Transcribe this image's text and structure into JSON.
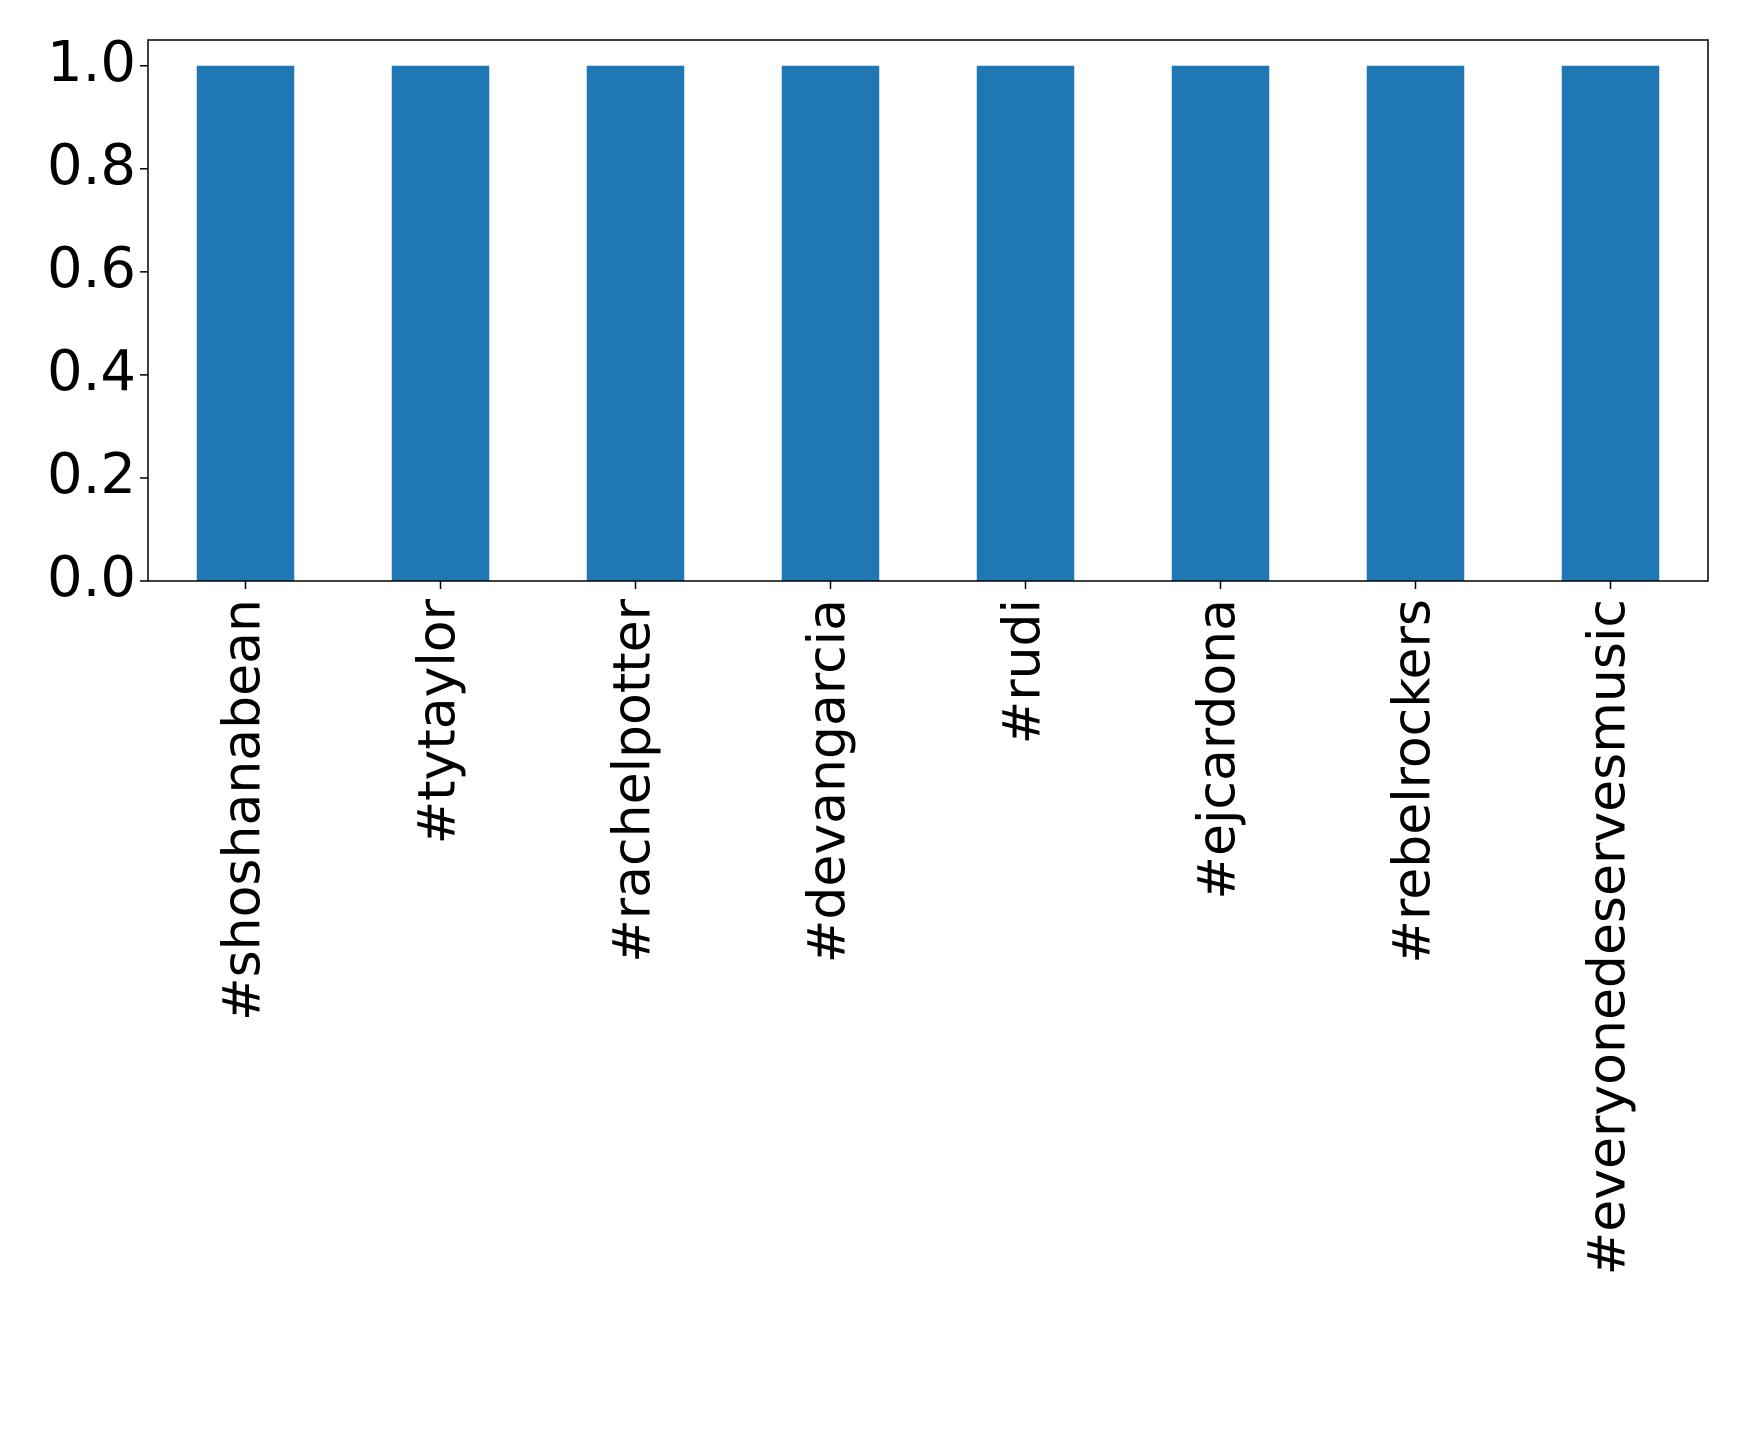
{
  "chart_data": {
    "type": "bar",
    "categories": [
      "#shoshanabean",
      "#tytaylor",
      "#rachelpotter",
      "#devangarcia",
      "#rudi",
      "#ejcardona",
      "#rebelrockers",
      "#everyonedeservesmusic"
    ],
    "values": [
      1,
      1,
      1,
      1,
      1,
      1,
      1,
      1
    ],
    "color": "#1f77b4",
    "ylim": [
      0,
      1.05
    ],
    "yticks": [
      {
        "value": 0,
        "label": "0.0"
      },
      {
        "value": 0.2,
        "label": "0.2"
      },
      {
        "value": 0.4,
        "label": "0.4"
      },
      {
        "value": 0.6,
        "label": "0.6"
      },
      {
        "value": 0.8,
        "label": "0.8"
      },
      {
        "value": 1,
        "label": "1.0"
      }
    ],
    "grid": false
  }
}
